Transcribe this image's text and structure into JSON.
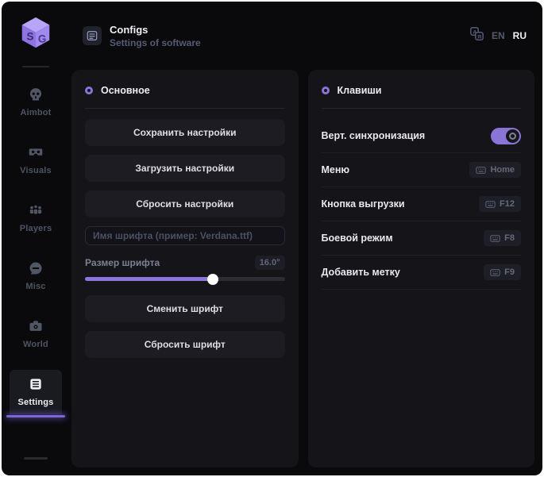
{
  "window": {
    "title": "Configs",
    "subtitle": "Settings of software"
  },
  "header": {
    "languages": [
      {
        "label": "EN",
        "active": false
      },
      {
        "label": "RU",
        "active": true
      }
    ]
  },
  "sidebar": {
    "items": [
      {
        "label": "Aimbot",
        "icon": "skull-icon",
        "active": false
      },
      {
        "label": "Visuals",
        "icon": "vr-goggles-icon",
        "active": false
      },
      {
        "label": "Players",
        "icon": "players-icon",
        "active": false
      },
      {
        "label": "Misc",
        "icon": "chat-icon",
        "active": false
      },
      {
        "label": "World",
        "icon": "briefcase-icon",
        "active": false
      },
      {
        "label": "Settings",
        "icon": "list-icon",
        "active": true
      }
    ]
  },
  "main": {
    "left_panel": {
      "title": "Основное",
      "buttons_top": [
        "Сохранить настройки",
        "Загрузить настройки",
        "Сбросить настройки"
      ],
      "font_name_placeholder": "Имя шрифта (пример: Verdana.ttf)",
      "font_size": {
        "label": "Размер шрифта",
        "value": "16.0°",
        "percent": 64
      },
      "buttons_bottom": [
        "Сменить шрифт",
        "Сбросить шрифт"
      ]
    },
    "right_panel": {
      "title": "Клавиши",
      "rows": [
        {
          "label": "Верт. синхронизация",
          "control": "toggle",
          "state": "on"
        },
        {
          "label": "Меню",
          "control": "keybind",
          "key": "Home"
        },
        {
          "label": "Кнопка выгрузки",
          "control": "keybind",
          "key": "F12"
        },
        {
          "label": "Боевой режим",
          "control": "keybind",
          "key": "F8"
        },
        {
          "label": "Добавить метку",
          "control": "keybind",
          "key": "F9"
        }
      ]
    }
  },
  "colors": {
    "accent": "#8b74d8",
    "logo": "#a78bfa",
    "background": "#0a0a0d",
    "card": "#141419",
    "active_underline": "#7b66d9"
  }
}
